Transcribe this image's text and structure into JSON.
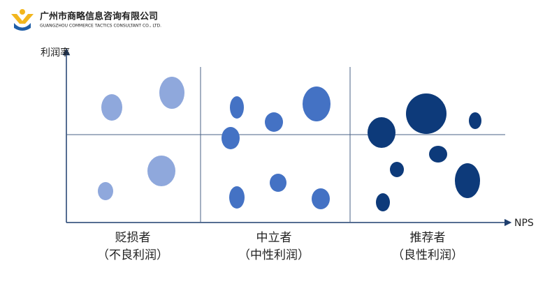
{
  "company": {
    "name_cn": "广州市商略信息咨询有限公司",
    "name_en": "GUANGZHOU COMMERCE TACTICS CONSULTANT CO., LTD."
  },
  "axes": {
    "y_label": "利润率",
    "x_label": "NPS"
  },
  "groups": [
    {
      "name": "贬损者",
      "subtitle": "（不良利润）"
    },
    {
      "name": "中立者",
      "subtitle": "（中性利润）"
    },
    {
      "name": "推荐者",
      "subtitle": "（良性利润）"
    }
  ]
}
